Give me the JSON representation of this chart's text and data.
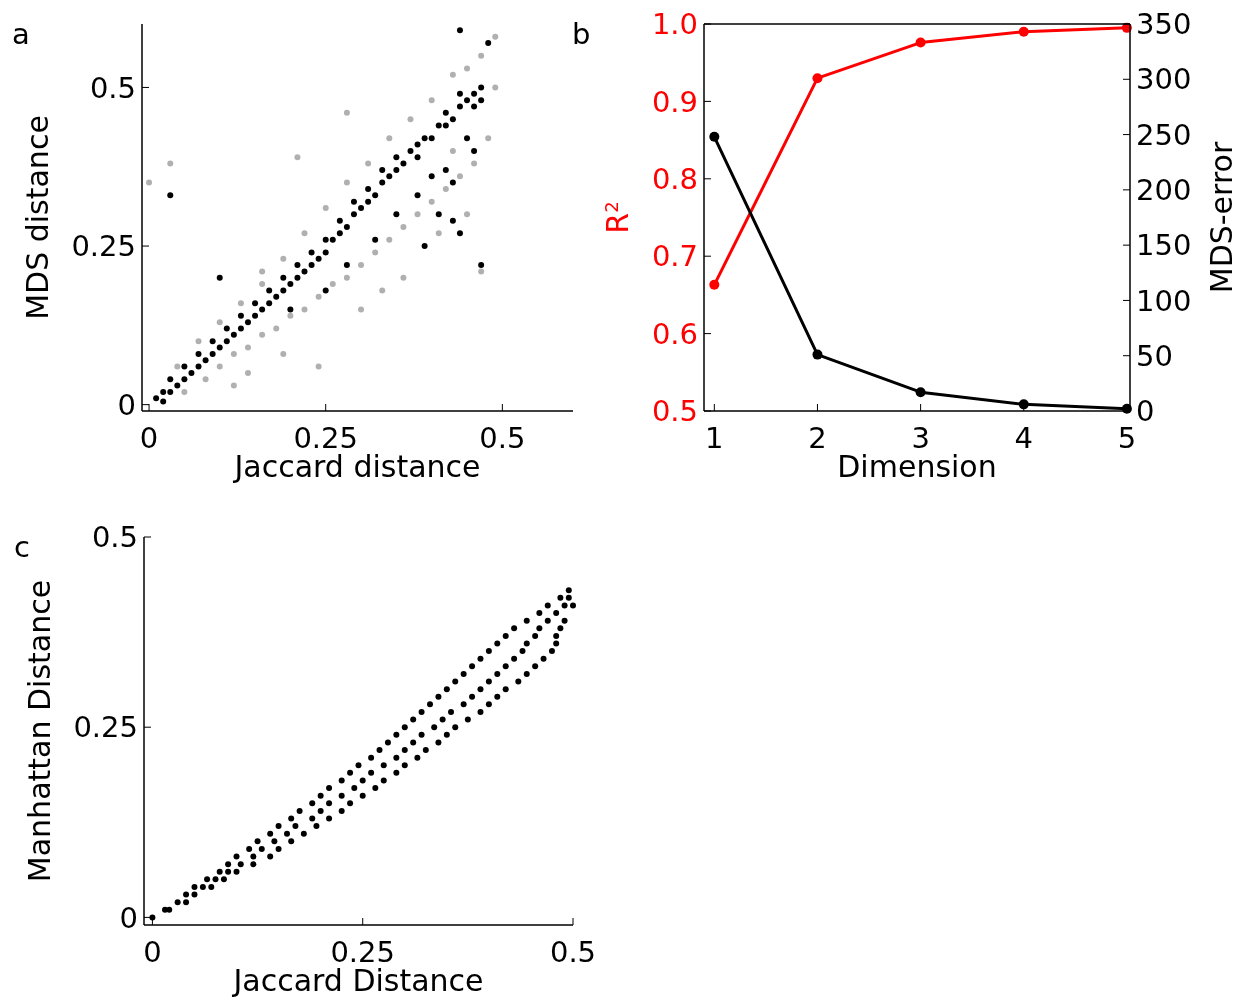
{
  "chart_data": [
    {
      "type": "scatter",
      "xlabel": "Jaccard distance",
      "ylabel": "MDS distance",
      "annotations": [
        "a"
      ],
      "xlim": [
        -0.01,
        0.6
      ],
      "ylim": [
        -0.01,
        0.6
      ],
      "xticks": [
        0,
        0.25,
        0.5
      ],
      "yticks": [
        0,
        0.25,
        0.5
      ],
      "grid": false,
      "marker": "circle",
      "series": [
        {
          "color": "#b0b0b0",
          "x": [
            0.0,
            0.03,
            0.05,
            0.08,
            0.1,
            0.12,
            0.14,
            0.16,
            0.18,
            0.2,
            0.22,
            0.24,
            0.26,
            0.28,
            0.3,
            0.32,
            0.34,
            0.36,
            0.38,
            0.4,
            0.42,
            0.44,
            0.46,
            0.48,
            0.49,
            0.49,
            0.47,
            0.45,
            0.43,
            0.4,
            0.37,
            0.34,
            0.31,
            0.28,
            0.25,
            0.22,
            0.19,
            0.16,
            0.13,
            0.1,
            0.07,
            0.04,
            0.28,
            0.21,
            0.16,
            0.14,
            0.24,
            0.12,
            0.47,
            0.45,
            0.43,
            0.36,
            0.3,
            0.19,
            0.33,
            0.41
          ],
          "values": [
            0.35,
            0.38,
            0.02,
            0.04,
            0.06,
            0.08,
            0.09,
            0.11,
            0.12,
            0.14,
            0.15,
            0.17,
            0.19,
            0.2,
            0.22,
            0.24,
            0.26,
            0.28,
            0.3,
            0.32,
            0.34,
            0.36,
            0.38,
            0.42,
            0.5,
            0.58,
            0.55,
            0.53,
            0.52,
            0.48,
            0.45,
            0.42,
            0.38,
            0.35,
            0.31,
            0.27,
            0.23,
            0.19,
            0.16,
            0.13,
            0.1,
            0.06,
            0.46,
            0.39,
            0.21,
            0.05,
            0.06,
            0.03,
            0.21,
            0.3,
            0.4,
            0.2,
            0.15,
            0.08,
            0.18,
            0.27
          ]
        },
        {
          "color": "#000000",
          "x": [
            0.01,
            0.02,
            0.02,
            0.03,
            0.03,
            0.04,
            0.05,
            0.05,
            0.06,
            0.07,
            0.07,
            0.08,
            0.09,
            0.09,
            0.1,
            0.11,
            0.11,
            0.12,
            0.13,
            0.13,
            0.14,
            0.15,
            0.15,
            0.16,
            0.17,
            0.17,
            0.18,
            0.19,
            0.19,
            0.2,
            0.21,
            0.21,
            0.22,
            0.23,
            0.23,
            0.24,
            0.25,
            0.25,
            0.26,
            0.27,
            0.27,
            0.28,
            0.29,
            0.29,
            0.3,
            0.31,
            0.31,
            0.32,
            0.33,
            0.33,
            0.34,
            0.35,
            0.35,
            0.36,
            0.37,
            0.38,
            0.38,
            0.39,
            0.4,
            0.41,
            0.42,
            0.42,
            0.43,
            0.44,
            0.44,
            0.45,
            0.46,
            0.46,
            0.47,
            0.47,
            0.32,
            0.35,
            0.38,
            0.4,
            0.42,
            0.43,
            0.45,
            0.46,
            0.41,
            0.43,
            0.44,
            0.25,
            0.28,
            0.2,
            0.1,
            0.03,
            0.44,
            0.48,
            0.47,
            0.39
          ],
          "values": [
            0.01,
            0.02,
            0.005,
            0.02,
            0.04,
            0.03,
            0.04,
            0.06,
            0.05,
            0.06,
            0.08,
            0.07,
            0.08,
            0.1,
            0.09,
            0.1,
            0.12,
            0.11,
            0.12,
            0.14,
            0.13,
            0.14,
            0.16,
            0.15,
            0.16,
            0.18,
            0.17,
            0.18,
            0.2,
            0.19,
            0.2,
            0.22,
            0.21,
            0.22,
            0.24,
            0.23,
            0.24,
            0.26,
            0.26,
            0.27,
            0.29,
            0.28,
            0.3,
            0.32,
            0.31,
            0.32,
            0.34,
            0.33,
            0.35,
            0.37,
            0.36,
            0.37,
            0.39,
            0.38,
            0.4,
            0.41,
            0.39,
            0.42,
            0.42,
            0.44,
            0.44,
            0.46,
            0.45,
            0.47,
            0.49,
            0.48,
            0.49,
            0.47,
            0.48,
            0.5,
            0.26,
            0.3,
            0.33,
            0.36,
            0.37,
            0.35,
            0.42,
            0.4,
            0.3,
            0.29,
            0.27,
            0.18,
            0.22,
            0.15,
            0.2,
            0.33,
            0.59,
            0.57,
            0.22,
            0.25
          ]
        }
      ]
    },
    {
      "type": "line",
      "xlabel": "Dimension",
      "ylabel": "R$^{2}$",
      "y2label": "MDS-error",
      "annotations": [
        "b"
      ],
      "x": [
        1,
        2,
        3,
        4,
        5
      ],
      "xlim": [
        0.9,
        5.03
      ],
      "xticks": [
        1,
        2,
        3,
        4,
        5
      ],
      "ylim": [
        0.5,
        1.0
      ],
      "yticks": [
        0.5,
        0.6,
        0.7,
        0.8,
        0.9,
        {
          "value": 1.0,
          "label": "1.0"
        }
      ],
      "y2lim": [
        0,
        350
      ],
      "y2ticks": [
        0,
        50,
        100,
        150,
        200,
        250,
        300,
        350
      ],
      "grid": false,
      "marker": "circle",
      "line_style": "solid",
      "series": [
        {
          "color": "#ff0000",
          "values": [
            0.663,
            0.93,
            0.976,
            0.99,
            0.995
          ]
        },
        {
          "color": "#000000",
          "axis": "y2",
          "values": [
            248,
            51,
            17,
            6,
            2
          ]
        }
      ]
    },
    {
      "type": "scatter",
      "xlabel": "Jaccard Distance",
      "ylabel": "Manhattan Distance",
      "annotations": [
        "c"
      ],
      "xlim": [
        -0.01,
        0.5
      ],
      "ylim": [
        -0.01,
        0.5
      ],
      "xticks": [
        0,
        0.25,
        0.5
      ],
      "yticks": [
        0,
        0.25,
        0.5
      ],
      "grid": false,
      "marker": "circle",
      "series": [
        {
          "color": "#000000",
          "x": [
            0,
            0.015,
            0.02,
            0.03,
            0.04,
            0.04,
            0.05,
            0.05,
            0.06,
            0.07,
            0.065,
            0.075,
            0.085,
            0.08,
            0.09,
            0.1,
            0.09,
            0.105,
            0.12,
            0.1,
            0.12,
            0.14,
            0.115,
            0.13,
            0.15,
            0.125,
            0.145,
            0.165,
            0.14,
            0.16,
            0.18,
            0.15,
            0.17,
            0.195,
            0.165,
            0.19,
            0.21,
            0.175,
            0.2,
            0.225,
            0.19,
            0.21,
            0.235,
            0.2,
            0.225,
            0.25,
            0.21,
            0.24,
            0.265,
            0.225,
            0.25,
            0.275,
            0.235,
            0.26,
            0.29,
            0.245,
            0.275,
            0.3,
            0.26,
            0.29,
            0.315,
            0.27,
            0.3,
            0.325,
            0.28,
            0.31,
            0.34,
            0.29,
            0.32,
            0.35,
            0.3,
            0.335,
            0.36,
            0.31,
            0.345,
            0.375,
            0.32,
            0.355,
            0.39,
            0.33,
            0.37,
            0.4,
            0.34,
            0.38,
            0.41,
            0.35,
            0.39,
            0.42,
            0.36,
            0.4,
            0.435,
            0.37,
            0.41,
            0.445,
            0.38,
            0.42,
            0.455,
            0.39,
            0.43,
            0.465,
            0.4,
            0.44,
            0.475,
            0.41,
            0.445,
            0.48,
            0.42,
            0.455,
            0.48,
            0.43,
            0.46,
            0.485,
            0.445,
            0.47,
            0.49,
            0.46,
            0.48,
            0.47,
            0.49,
            0.5,
            0.485,
            0.495,
            0.495
          ],
          "values": [
            0,
            0.01,
            0.01,
            0.02,
            0.02,
            0.03,
            0.03,
            0.04,
            0.04,
            0.04,
            0.05,
            0.05,
            0.05,
            0.06,
            0.06,
            0.06,
            0.07,
            0.07,
            0.07,
            0.08,
            0.08,
            0.08,
            0.09,
            0.09,
            0.09,
            0.1,
            0.1,
            0.1,
            0.11,
            0.11,
            0.11,
            0.12,
            0.12,
            0.12,
            0.13,
            0.13,
            0.13,
            0.14,
            0.14,
            0.14,
            0.15,
            0.15,
            0.15,
            0.16,
            0.16,
            0.16,
            0.17,
            0.17,
            0.17,
            0.18,
            0.18,
            0.18,
            0.19,
            0.19,
            0.19,
            0.2,
            0.2,
            0.2,
            0.21,
            0.21,
            0.21,
            0.22,
            0.22,
            0.22,
            0.23,
            0.23,
            0.23,
            0.24,
            0.24,
            0.24,
            0.25,
            0.25,
            0.25,
            0.26,
            0.26,
            0.26,
            0.27,
            0.27,
            0.27,
            0.28,
            0.28,
            0.28,
            0.29,
            0.29,
            0.29,
            0.3,
            0.3,
            0.3,
            0.31,
            0.31,
            0.31,
            0.32,
            0.32,
            0.32,
            0.33,
            0.33,
            0.33,
            0.34,
            0.34,
            0.34,
            0.35,
            0.35,
            0.35,
            0.36,
            0.36,
            0.36,
            0.37,
            0.37,
            0.37,
            0.38,
            0.38,
            0.38,
            0.39,
            0.39,
            0.39,
            0.4,
            0.4,
            0.41,
            0.41,
            0.41,
            0.42,
            0.42,
            0.43
          ]
        }
      ]
    }
  ]
}
